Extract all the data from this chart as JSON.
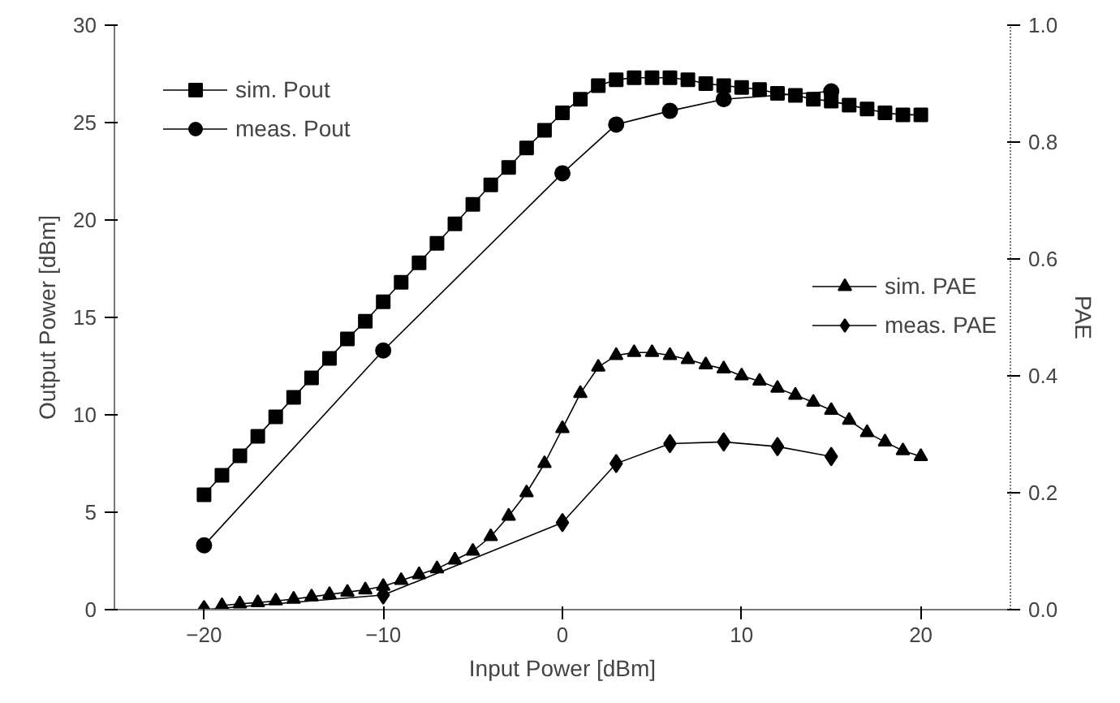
{
  "chart_data": {
    "type": "line",
    "xlabel": "Input Power [dBm]",
    "ylabel": "Output Power [dBm]",
    "y2label": "PAE",
    "xlim": [
      -25,
      25
    ],
    "xticks": [
      -20,
      -10,
      0,
      10,
      20
    ],
    "ylim": [
      0,
      30
    ],
    "yticks": [
      0,
      5,
      10,
      15,
      20,
      25,
      30
    ],
    "y2lim": [
      0,
      1.0
    ],
    "y2ticks": [
      {
        "value": 0,
        "label": "0.0"
      },
      {
        "value": 0.2,
        "label": "0.2"
      },
      {
        "value": 0.4,
        "label": "0.4"
      },
      {
        "value": 0.6,
        "label": "0.6"
      },
      {
        "value": 0.8,
        "label": "0.8"
      },
      {
        "value": 1.0,
        "label": "1.0"
      }
    ],
    "grid": false,
    "legend": "top left",
    "line_style": "solid",
    "series": [
      {
        "name": "sim. Pout",
        "color": "#000000",
        "marker": "square",
        "x": [
          -20,
          -19,
          -18,
          -17,
          -16,
          -15,
          -14,
          -13,
          -12,
          -11,
          -10,
          -9,
          -8,
          -7,
          -6,
          -5,
          -4,
          -3,
          -2,
          -1,
          0,
          1,
          2,
          3,
          4,
          5,
          6,
          7,
          8,
          9,
          10,
          11,
          12,
          13,
          14,
          15,
          16,
          17,
          18,
          19,
          20
        ],
        "values": [
          5.9,
          6.9,
          7.9,
          8.9,
          9.9,
          10.9,
          11.9,
          12.9,
          13.9,
          14.8,
          15.8,
          16.8,
          17.8,
          18.8,
          19.8,
          20.8,
          21.8,
          22.7,
          23.7,
          24.6,
          25.5,
          26.2,
          26.9,
          27.2,
          27.3,
          27.3,
          27.3,
          27.2,
          27.0,
          26.9,
          26.8,
          26.7,
          26.5,
          26.4,
          26.2,
          26.1,
          25.9,
          25.7,
          25.5,
          25.4,
          25.4
        ]
      },
      {
        "name": "meas. Pout",
        "color": "#000000",
        "marker": "circle",
        "x": [
          -20,
          -10,
          0,
          3,
          6,
          9,
          15
        ],
        "values": [
          3.3,
          13.3,
          22.4,
          24.9,
          25.6,
          26.2,
          26.6
        ]
      },
      {
        "name": "sim. PAE",
        "color": "#000000",
        "marker": "triangle",
        "axis": "y2",
        "x": [
          -19,
          -18,
          -17,
          -16,
          -15,
          -14,
          -13,
          -12,
          -11,
          -10,
          -9,
          -8,
          -7,
          -6,
          -5,
          -4,
          -3,
          -2,
          -1,
          0,
          1,
          2,
          3,
          4,
          5,
          6,
          7,
          8,
          9,
          10,
          11,
          12,
          13,
          14,
          15,
          16,
          17,
          18,
          19,
          20
        ],
        "values": [
          0.007,
          0.01,
          0.012,
          0.015,
          0.018,
          0.022,
          0.026,
          0.03,
          0.034,
          0.04,
          0.05,
          0.06,
          0.07,
          0.085,
          0.1,
          0.125,
          0.16,
          0.2,
          0.25,
          0.31,
          0.37,
          0.415,
          0.435,
          0.44,
          0.44,
          0.435,
          0.428,
          0.419,
          0.412,
          0.4,
          0.391,
          0.379,
          0.367,
          0.355,
          0.341,
          0.324,
          0.303,
          0.287,
          0.272,
          0.262
        ]
      },
      {
        "name": "meas. PAE",
        "color": "#000000",
        "marker": "diamond",
        "axis": "y2",
        "x": [
          -20,
          -10,
          0,
          3,
          6,
          9,
          12,
          15
        ],
        "values": [
          0.0,
          0.025,
          0.149,
          0.25,
          0.284,
          0.287,
          0.279,
          0.262
        ]
      }
    ]
  }
}
